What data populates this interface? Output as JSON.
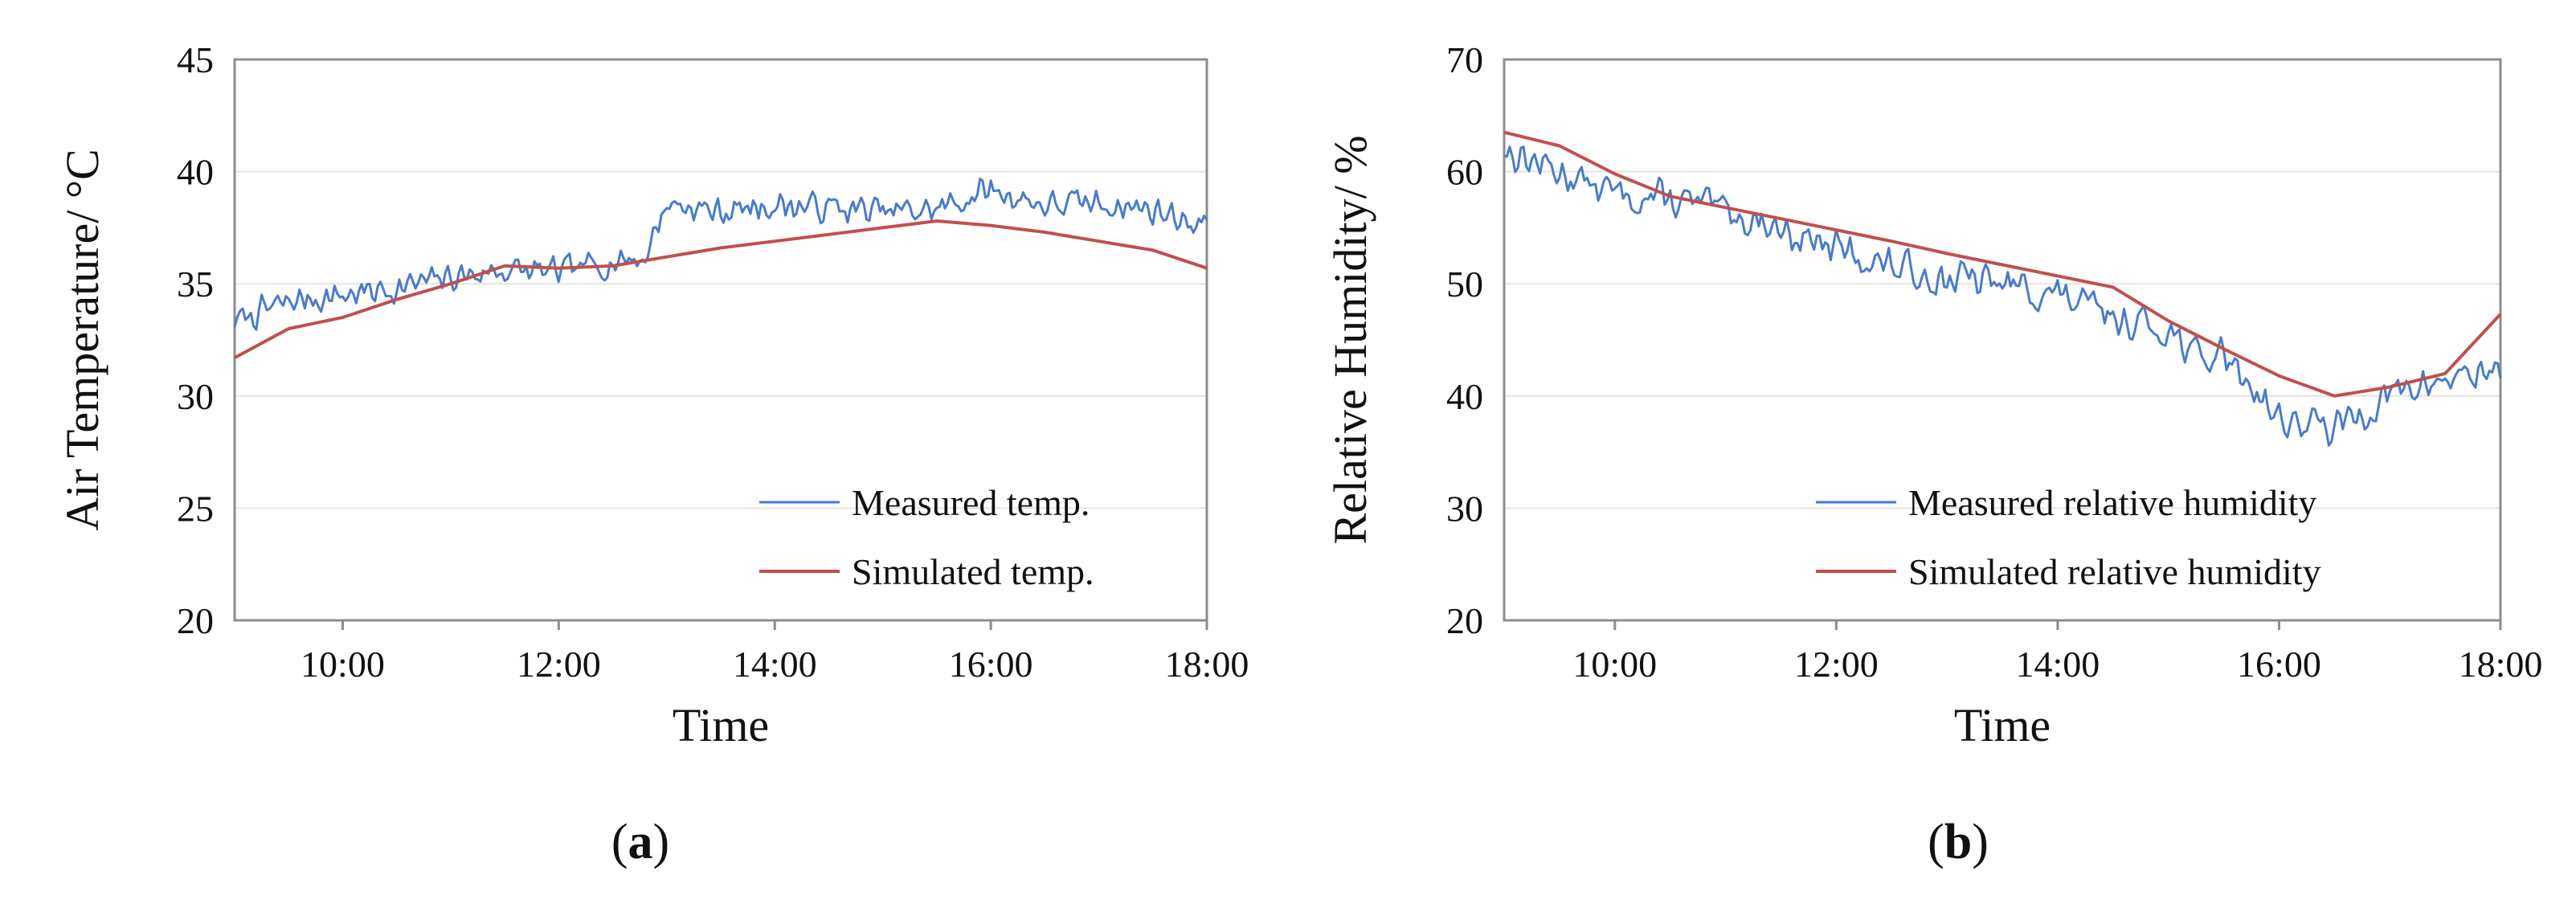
{
  "figure": {
    "panels": [
      {
        "letter": "a",
        "label": "(a)"
      },
      {
        "letter": "b",
        "label": "(b)"
      }
    ]
  },
  "colors": {
    "measured": "#4a7bc8",
    "simulated": "#c0504d",
    "grid": "#e3e3e3",
    "axis": "#8c8c8c",
    "text": "#111111"
  },
  "chart_data": [
    {
      "type": "line",
      "panel": "(a)",
      "xlabel": "Time",
      "ylabel": "Air Temperature/ °C",
      "xlim": [
        9,
        18
      ],
      "ylim": [
        20,
        45
      ],
      "yticks": [
        20,
        25,
        30,
        35,
        40,
        45
      ],
      "xticks": [
        {
          "v": 10,
          "label": "10:00"
        },
        {
          "v": 12,
          "label": "12:00"
        },
        {
          "v": 14,
          "label": "14:00"
        },
        {
          "v": 16,
          "label": "16:00"
        },
        {
          "v": 18,
          "label": "18:00"
        }
      ],
      "grid": "horizontal",
      "legend_position": "bottom-right",
      "series": [
        {
          "name": "Measured temp.",
          "noise_amplitude": 0.8,
          "samples": 360,
          "noise_seed": 7,
          "trend": [
            [
              9,
              33.3
            ],
            [
              9.5,
              34.2
            ],
            [
              10,
              34.5
            ],
            [
              10.5,
              34.8
            ],
            [
              11,
              35.3
            ],
            [
              11.5,
              35.6
            ],
            [
              12,
              35.5
            ],
            [
              12.5,
              36.0
            ],
            [
              12.8,
              36.2
            ],
            [
              13.0,
              38.6
            ],
            [
              13.5,
              38.2
            ],
            [
              14.0,
              38.5
            ],
            [
              14.5,
              38.4
            ],
            [
              15.0,
              38.2
            ],
            [
              15.5,
              38.3
            ],
            [
              16.0,
              39.2
            ],
            [
              16.5,
              38.5
            ],
            [
              17.0,
              38.6
            ],
            [
              17.5,
              38.3
            ],
            [
              18.0,
              37.6
            ]
          ]
        },
        {
          "name": "Simulated temp.",
          "points": [
            [
              9,
              31.7
            ],
            [
              9.5,
              33.0
            ],
            [
              10,
              33.5
            ],
            [
              10.5,
              34.3
            ],
            [
              11,
              35.0
            ],
            [
              11.5,
              35.8
            ],
            [
              12,
              35.7
            ],
            [
              12.5,
              35.8
            ],
            [
              13,
              36.2
            ],
            [
              13.5,
              36.6
            ],
            [
              14,
              36.9
            ],
            [
              14.5,
              37.2
            ],
            [
              15,
              37.5
            ],
            [
              15.5,
              37.8
            ],
            [
              16,
              37.6
            ],
            [
              16.5,
              37.3
            ],
            [
              17,
              36.9
            ],
            [
              17.5,
              36.5
            ],
            [
              18,
              35.7
            ]
          ]
        }
      ]
    },
    {
      "type": "line",
      "panel": "(b)",
      "xlabel": "Time",
      "ylabel": "Relative Humidity/ %",
      "xlim": [
        9,
        18
      ],
      "ylim": [
        20,
        70
      ],
      "yticks": [
        20,
        30,
        40,
        50,
        60,
        70
      ],
      "xticks": [
        {
          "v": 10,
          "label": "10:00"
        },
        {
          "v": 12,
          "label": "12:00"
        },
        {
          "v": 14,
          "label": "14:00"
        },
        {
          "v": 16,
          "label": "16:00"
        },
        {
          "v": 18,
          "label": "18:00"
        }
      ],
      "grid": "horizontal",
      "legend_position": "bottom-right",
      "series": [
        {
          "name": "Measured relative humidity",
          "noise_amplitude": 2.0,
          "samples": 360,
          "noise_seed": 13,
          "trend": [
            [
              9,
              62.0
            ],
            [
              9.5,
              60.0
            ],
            [
              10,
              58.0
            ],
            [
              10.5,
              57.5
            ],
            [
              11,
              56.5
            ],
            [
              11.5,
              55.0
            ],
            [
              12,
              53.0
            ],
            [
              12.5,
              51.5
            ],
            [
              13,
              50.5
            ],
            [
              13.5,
              50.0
            ],
            [
              14,
              49.0
            ],
            [
              14.5,
              47.0
            ],
            [
              15,
              46.0
            ],
            [
              15.3,
              43.0
            ],
            [
              15.5,
              44.0
            ],
            [
              16,
              38.0
            ],
            [
              16.5,
              37.0
            ],
            [
              17,
              40.0
            ],
            [
              17.5,
              41.5
            ],
            [
              18,
              42.5
            ]
          ]
        },
        {
          "name": "Simulated relative humidity",
          "points": [
            [
              9,
              63.5
            ],
            [
              9.5,
              62.3
            ],
            [
              10,
              59.8
            ],
            [
              10.5,
              57.8
            ],
            [
              11,
              56.8
            ],
            [
              11.5,
              55.8
            ],
            [
              12,
              54.8
            ],
            [
              12.5,
              53.8
            ],
            [
              13,
              52.7
            ],
            [
              13.5,
              51.7
            ],
            [
              14,
              50.7
            ],
            [
              14.5,
              49.7
            ],
            [
              15,
              46.7
            ],
            [
              15.5,
              44.2
            ],
            [
              16,
              41.8
            ],
            [
              16.5,
              40.0
            ],
            [
              17,
              40.8
            ],
            [
              17.5,
              42.0
            ],
            [
              18,
              47.3
            ]
          ]
        }
      ]
    }
  ]
}
